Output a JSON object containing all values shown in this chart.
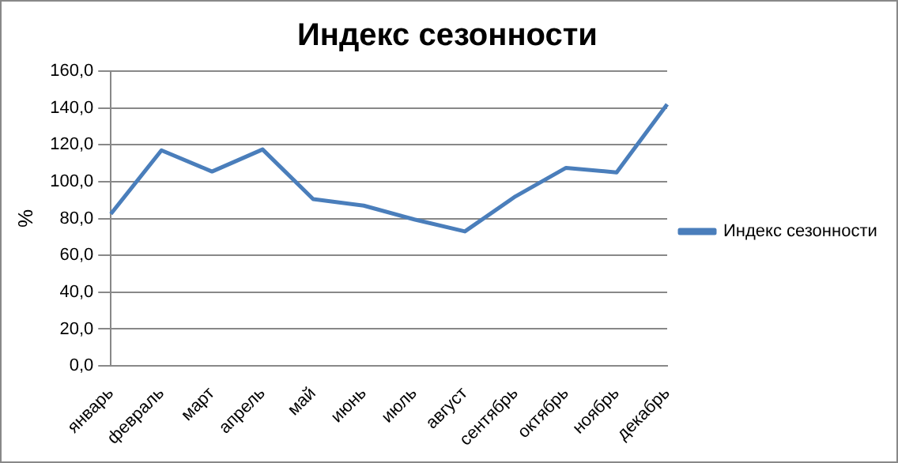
{
  "chart_data": {
    "type": "line",
    "title": "Индекс сезонности",
    "ylabel": "%",
    "categories": [
      "январь",
      "февраль",
      "март",
      "апрель",
      "май",
      "июнь",
      "июль",
      "август",
      "сентябрь",
      "октябрь",
      "ноябрь",
      "декабрь"
    ],
    "series": [
      {
        "name": "Индекс сезонности",
        "color": "#4a7ebb",
        "values": [
          82.5,
          117,
          105.5,
          117.5,
          90.5,
          87,
          79.5,
          73,
          92,
          107.5,
          105,
          142
        ]
      }
    ],
    "ylim": [
      0,
      160
    ],
    "yticks": [
      {
        "value": 0,
        "label": "0,0"
      },
      {
        "value": 20,
        "label": "20,0"
      },
      {
        "value": 40,
        "label": "40,0"
      },
      {
        "value": 60,
        "label": "60,0"
      },
      {
        "value": 80,
        "label": "80,0"
      },
      {
        "value": 100,
        "label": "100,0"
      },
      {
        "value": 120,
        "label": "120,0"
      },
      {
        "value": 140,
        "label": "140,0"
      },
      {
        "value": 160,
        "label": "160,0"
      }
    ],
    "grid": "y",
    "legend": "right",
    "marker": "none",
    "line_style": "solid"
  }
}
